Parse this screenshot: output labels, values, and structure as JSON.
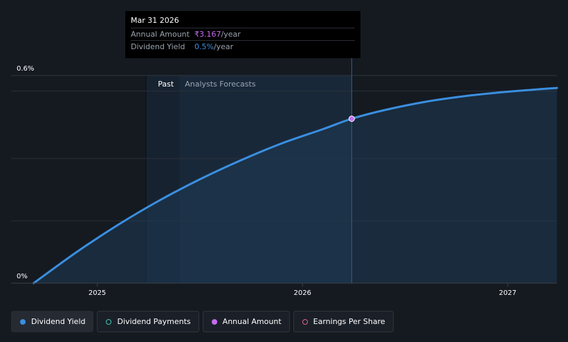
{
  "chart_data": {
    "type": "area",
    "title": "",
    "xlabel": "",
    "ylabel": "",
    "x_range": [
      2024.58,
      2027.24
    ],
    "ylim": [
      0,
      0.6
    ],
    "x_ticks": [
      {
        "value": 2025.0,
        "label": "2025"
      },
      {
        "value": 2026.0,
        "label": "2026"
      },
      {
        "value": 2027.0,
        "label": "2027"
      }
    ],
    "y_ticks": [
      {
        "value": 0,
        "label": "0%"
      },
      {
        "value": 0.6,
        "label": "0.6%"
      }
    ],
    "gridlines_y": [
      0.18,
      0.36,
      0.555
    ],
    "regions": {
      "past": {
        "start": 2025.24,
        "end": 2025.4,
        "label": "Past"
      },
      "forecast": {
        "start": 2025.4,
        "end": 2026.24,
        "label": "Analysts Forecasts"
      }
    },
    "series": [
      {
        "name": "Dividend Yield",
        "color": "#3b8fe0",
        "x": [
          2024.69,
          2024.9,
          2025.1,
          2025.3,
          2025.5,
          2025.7,
          2025.9,
          2026.1,
          2026.24,
          2026.4,
          2026.6,
          2026.8,
          2027.0,
          2027.24
        ],
        "values": [
          0.0,
          0.09,
          0.168,
          0.238,
          0.3,
          0.355,
          0.404,
          0.445,
          0.475,
          0.5,
          0.524,
          0.541,
          0.553,
          0.564
        ]
      }
    ],
    "highlight": {
      "x": 2026.24,
      "value": 0.475,
      "color": "#c56cf0"
    }
  },
  "tooltip": {
    "date": "Mar 31 2026",
    "rows": [
      {
        "label": "Annual Amount",
        "value": "₹3.167",
        "unit": "/year"
      },
      {
        "label": "Dividend Yield",
        "value": "0.5%",
        "unit": "/year"
      }
    ]
  },
  "legend": [
    {
      "label": "Dividend Yield",
      "marker": "filled",
      "color": "#3b8fe0"
    },
    {
      "label": "Dividend Payments",
      "marker": "ring",
      "color": "#3fc8b8"
    },
    {
      "label": "Annual Amount",
      "marker": "filled",
      "color": "#c56cf0"
    },
    {
      "label": "Earnings Per Share",
      "marker": "ring",
      "color": "#e06090"
    }
  ]
}
